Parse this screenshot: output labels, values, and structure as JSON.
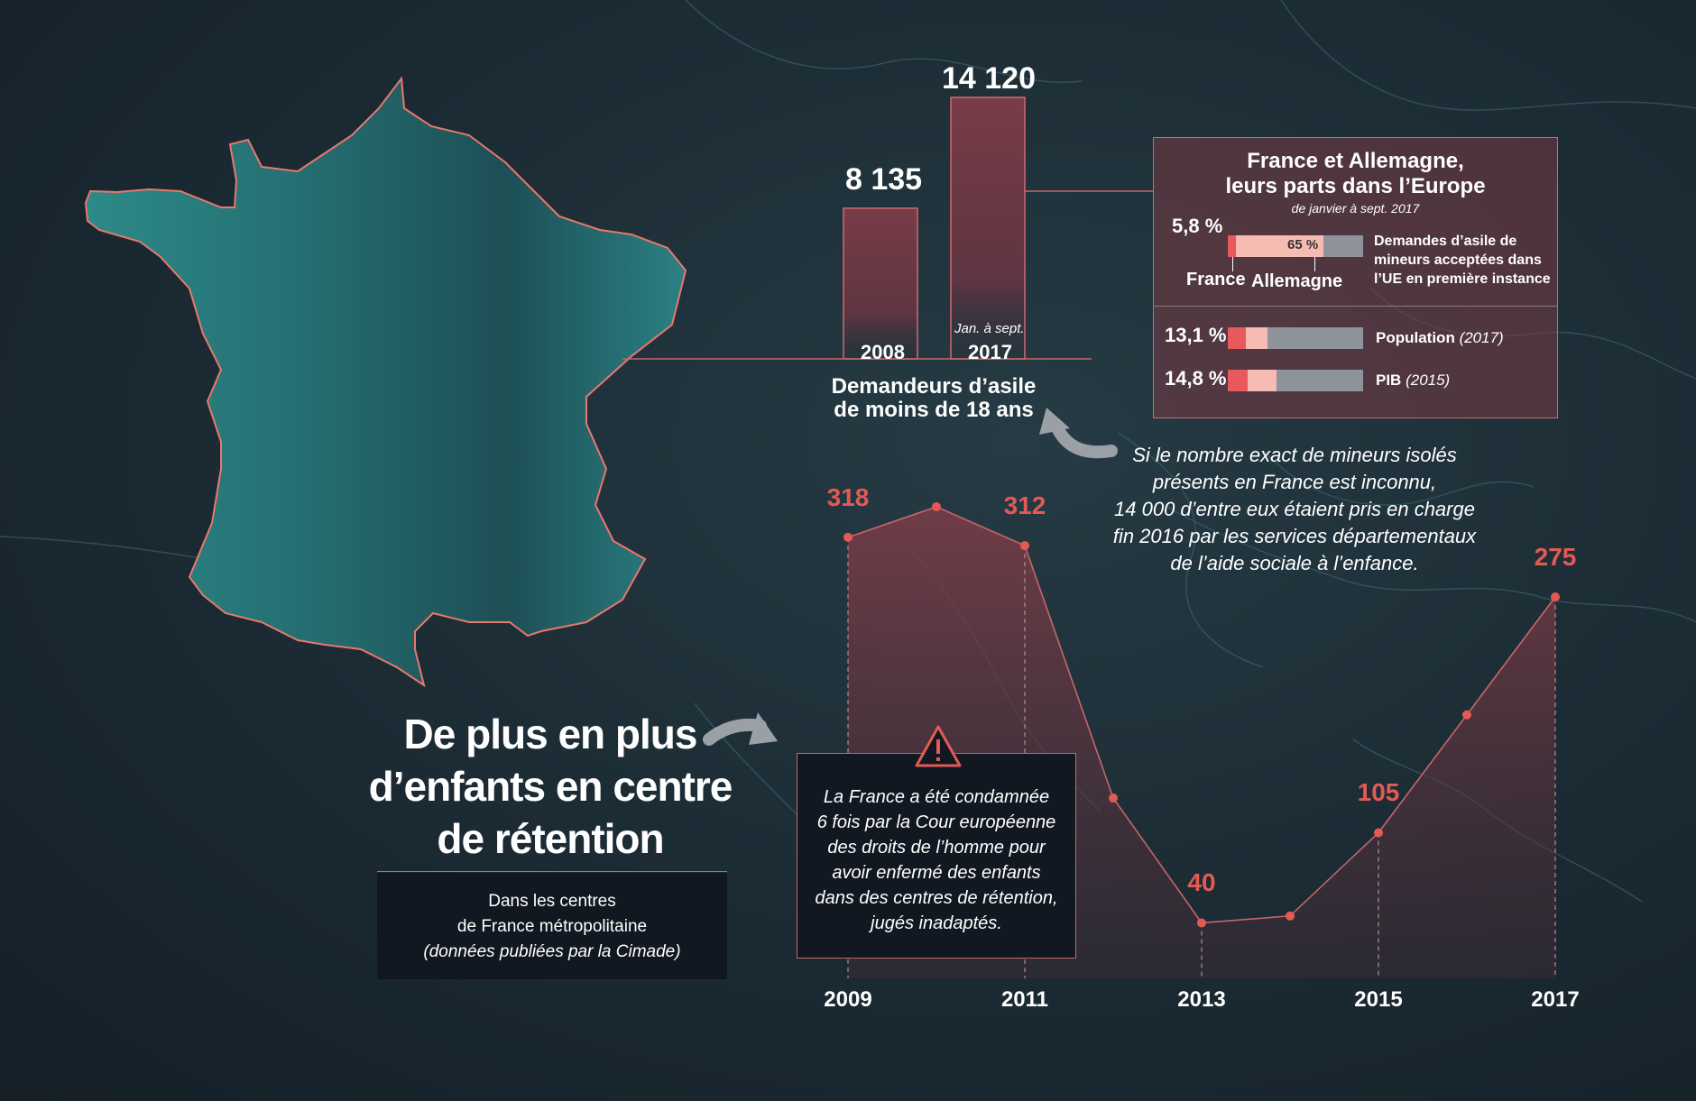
{
  "title": {
    "line1": "De plus en plus",
    "line2": "d’enfants en centre",
    "line3": "de rétention"
  },
  "subtitle_box": {
    "line1": "Dans les centres",
    "line2": "de France métropolitaine",
    "line3": "(données publiées par la Cimade)"
  },
  "warning_note": {
    "line1": "La France a été condamnée",
    "line2": "6 fois par la Cour européenne",
    "line3": "des droits de l’homme pour",
    "line4": "avoir enfermé des enfants",
    "line5": "dans des centres de rétention,",
    "line6": "jugés inadaptés."
  },
  "isolated_minors_note": {
    "line1": "Si le nombre exact de mineurs isolés",
    "line2": "présents en France est inconnu,",
    "line3": "14 000 d’entre eux étaient pris en charge",
    "line4": "fin 2016 par les services départementaux",
    "line5": "de l’aide sociale à l’enfance."
  },
  "panel": {
    "title_line1": "France et Allemagne,",
    "title_line2": "leurs parts dans l’Europe",
    "period": "de janvier à sept. 2017",
    "label_france": "France",
    "label_germany": "Allemagne"
  },
  "colors": {
    "france": "#e8595c",
    "germany": "#f6bcb3",
    "rest": "#8d929b",
    "accent_red": "#e35a55",
    "map_teal": "#2f8f8d",
    "area_fill": "#7a3a45"
  },
  "chart_data": [
    {
      "type": "bar",
      "title": "Demandeurs d’asile de moins de 18 ans",
      "categories": [
        "2008",
        "2017"
      ],
      "category_notes": [
        "",
        "Jan. à sept."
      ],
      "values": [
        8135,
        14120
      ],
      "value_labels": [
        "8 135",
        "14 120"
      ]
    },
    {
      "type": "bar",
      "orientation": "horizontal",
      "stacked": true,
      "unit": "%",
      "rows": [
        {
          "label_line1": "Demandes d’asile de",
          "label_line2": "mineurs acceptées dans",
          "label_line3": "l’UE en première instance",
          "france": 5.8,
          "germany": 65,
          "france_label": "5,8 %",
          "germany_label": "65 %"
        },
        {
          "label": "Population",
          "label_note": "(2017)",
          "france": 13.1,
          "germany": 16.0,
          "france_label": "13,1 %"
        },
        {
          "label": "PIB",
          "label_note": "(2015)",
          "france": 14.8,
          "germany": 21.0,
          "france_label": "14,8 %"
        }
      ]
    },
    {
      "type": "area",
      "x": [
        2009,
        2010,
        2011,
        2012,
        2013,
        2014,
        2015,
        2016,
        2017
      ],
      "values": [
        318,
        340,
        312,
        130,
        40,
        45,
        105,
        190,
        275
      ],
      "labeled": {
        "2009": "318",
        "2011": "312",
        "2013": "40",
        "2015": "105",
        "2017": "275"
      },
      "tick_labels": [
        "2009",
        "2011",
        "2013",
        "2015",
        "2017"
      ]
    }
  ]
}
